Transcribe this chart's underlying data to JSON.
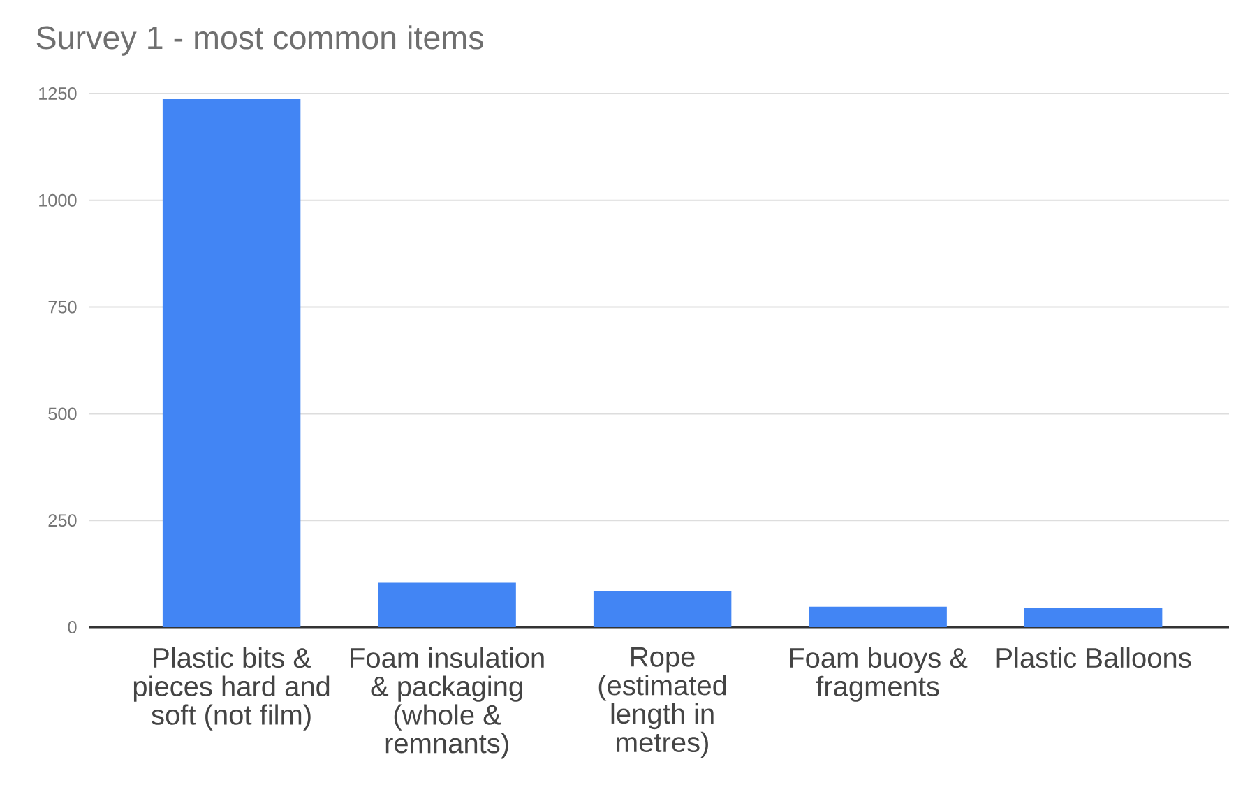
{
  "chart_data": {
    "type": "bar",
    "title": "Survey 1 - most common items",
    "categories": [
      "Plastic bits & pieces hard and soft (not film)",
      "Foam insulation & packaging (whole & remnants)",
      "Rope (estimated length in metres)",
      "Foam buoys & fragments",
      "Plastic Balloons"
    ],
    "values": [
      1237,
      104,
      85,
      48,
      45
    ],
    "color": "#4285f4",
    "ylim": [
      0,
      1250
    ],
    "yticks": [
      0,
      250,
      500,
      750,
      1000,
      1250
    ],
    "grid": "y"
  }
}
